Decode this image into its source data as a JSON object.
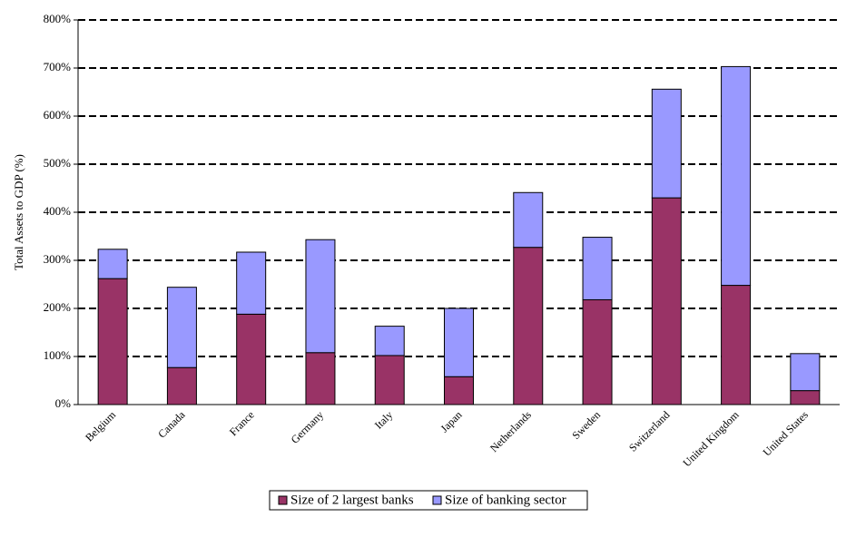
{
  "chart_data": {
    "type": "stacked_bar",
    "y_label": "Total Assets to GDP (%)",
    "categories": [
      "Belgium",
      "Canada",
      "France",
      "Germany",
      "Italy",
      "Japan",
      "Netherlands",
      "Sweden",
      "Switzerland",
      "United Kingdom",
      "United States"
    ],
    "series": [
      {
        "name": "Size of 2 largest banks",
        "color": "#993366",
        "values": [
          262,
          77,
          188,
          108,
          102,
          58,
          327,
          218,
          430,
          248,
          29
        ]
      },
      {
        "name": "Size of banking sector",
        "color": "#9999ff",
        "values": [
          61,
          167,
          129,
          235,
          61,
          142,
          114,
          130,
          226,
          455,
          77
        ]
      }
    ],
    "ylim": [
      0,
      800
    ],
    "yticks": [
      {
        "value": 0,
        "label": "0%"
      },
      {
        "value": 100,
        "label": "100%"
      },
      {
        "value": 200,
        "label": "200%"
      },
      {
        "value": 300,
        "label": "300%"
      },
      {
        "value": 400,
        "label": "400%"
      },
      {
        "value": 500,
        "label": "500%"
      },
      {
        "value": 600,
        "label": "600%"
      },
      {
        "value": 700,
        "label": "700%"
      },
      {
        "value": 800,
        "label": "800%"
      }
    ],
    "grid": true,
    "legend": "bottom"
  }
}
